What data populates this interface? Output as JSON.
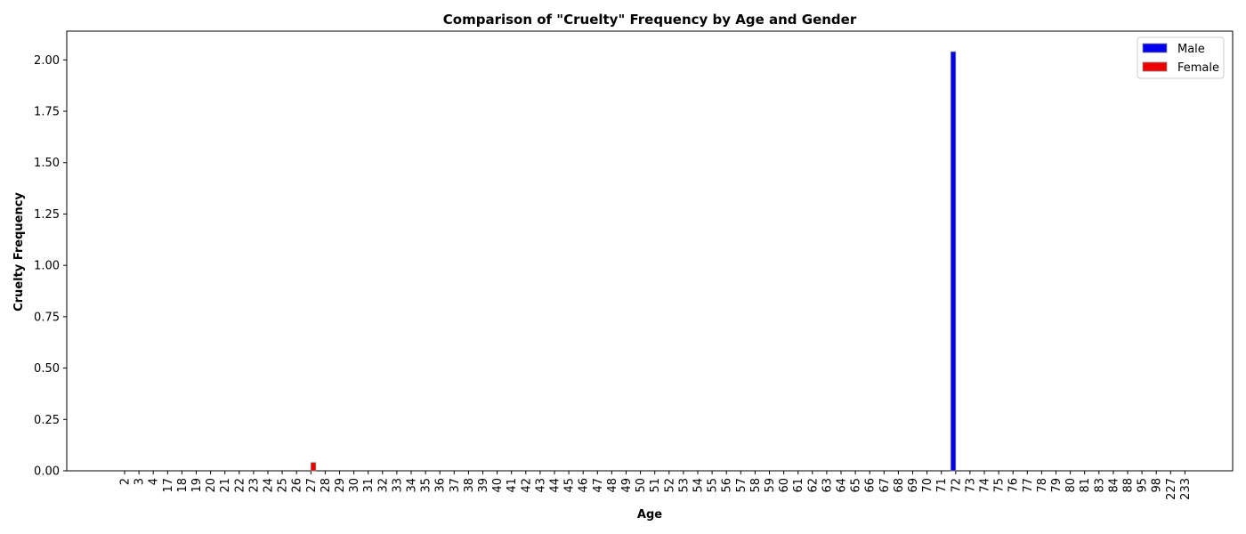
{
  "chart_data": {
    "type": "bar",
    "title": "Comparison of \"Cruelty\" Frequency by Age and Gender",
    "xlabel": "Age",
    "ylabel": "Cruelty Frequency",
    "ylim": [
      0,
      2.14
    ],
    "yticks": [
      "0.00",
      "0.25",
      "0.50",
      "0.75",
      "1.00",
      "1.25",
      "1.50",
      "1.75",
      "2.00"
    ],
    "categories": [
      "2",
      "3",
      "4",
      "17",
      "18",
      "19",
      "20",
      "21",
      "22",
      "23",
      "24",
      "25",
      "26",
      "27",
      "28",
      "29",
      "30",
      "31",
      "32",
      "33",
      "34",
      "35",
      "36",
      "37",
      "38",
      "39",
      "40",
      "41",
      "42",
      "43",
      "44",
      "45",
      "46",
      "47",
      "48",
      "49",
      "50",
      "51",
      "52",
      "53",
      "54",
      "55",
      "56",
      "57",
      "58",
      "59",
      "60",
      "61",
      "62",
      "63",
      "64",
      "65",
      "66",
      "67",
      "68",
      "69",
      "70",
      "71",
      "72",
      "73",
      "74",
      "75",
      "76",
      "77",
      "78",
      "79",
      "80",
      "81",
      "83",
      "84",
      "88",
      "95",
      "98",
      "227",
      "233"
    ],
    "series": [
      {
        "name": "Male",
        "color": "#0000ee",
        "values": [
          0,
          0,
          0,
          0,
          0,
          0,
          0,
          0,
          0,
          0,
          0,
          0,
          0,
          0,
          0,
          0,
          0,
          0,
          0,
          0,
          0,
          0,
          0,
          0,
          0,
          0,
          0,
          0,
          0,
          0,
          0,
          0,
          0,
          0,
          0,
          0,
          0,
          0,
          0,
          0,
          0,
          0,
          0,
          0,
          0,
          0,
          0,
          0,
          0,
          0,
          0,
          0,
          0,
          0,
          0,
          0,
          0,
          0,
          2.04,
          0,
          0,
          0,
          0,
          0,
          0,
          0,
          0,
          0,
          0,
          0,
          0,
          0,
          0,
          0,
          0
        ]
      },
      {
        "name": "Female",
        "color": "#ee0000",
        "values": [
          0,
          0,
          0,
          0,
          0,
          0,
          0,
          0,
          0,
          0,
          0,
          0,
          0,
          0.04,
          0,
          0,
          0,
          0,
          0,
          0,
          0,
          0,
          0,
          0,
          0,
          0,
          0,
          0,
          0,
          0,
          0,
          0,
          0,
          0,
          0,
          0,
          0,
          0,
          0,
          0,
          0,
          0,
          0,
          0,
          0,
          0,
          0,
          0,
          0,
          0,
          0,
          0,
          0,
          0,
          0,
          0,
          0,
          0,
          0,
          0,
          0,
          0,
          0,
          0,
          0,
          0,
          0,
          0,
          0,
          0,
          0,
          0,
          0,
          0,
          0
        ]
      }
    ],
    "legend_position": "top-right",
    "grid": false
  }
}
